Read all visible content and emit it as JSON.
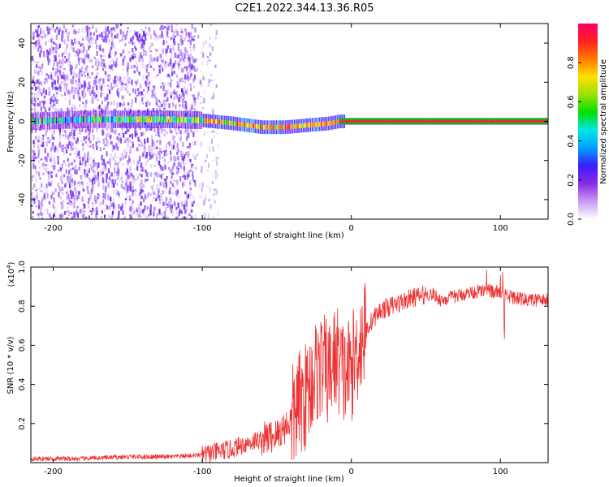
{
  "page_title": "C2E1.2022.344.13.36.R05",
  "chart_data": [
    {
      "type": "heatmap",
      "title": "C2E1.2022.344.13.36.R05",
      "xlabel": "Height of straight line (km)",
      "ylabel": "Frequency (Hz)",
      "xlim": [
        -215,
        132
      ],
      "ylim": [
        -50,
        50
      ],
      "xticks": [
        -200,
        -100,
        0,
        100
      ],
      "yticks": [
        -40,
        -20,
        0,
        20,
        40
      ],
      "ridge": {
        "x": [
          -215,
          -180,
          -150,
          -120,
          -100,
          -80,
          -60,
          -45,
          -30,
          -15,
          -8,
          0,
          50,
          100,
          132
        ],
        "y": [
          0,
          1,
          1,
          1,
          0.5,
          -1,
          -3,
          -3,
          -2,
          -1,
          0,
          0,
          0,
          0,
          0
        ]
      },
      "noise_regions": [
        {
          "x_from": -215,
          "x_to": -105,
          "density": "high"
        },
        {
          "x_from": -105,
          "x_to": -90,
          "density": "low"
        }
      ],
      "colorbar": {
        "label": "Normalized spectral amplitude",
        "range": [
          0,
          1
        ],
        "ticks": [
          "0.0",
          "0.2",
          "0.4",
          "0.6",
          "0.8"
        ],
        "colors": [
          "#ffffff",
          "#c899f5",
          "#8a2be2",
          "#3a1cff",
          "#00a0ff",
          "#00e6e6",
          "#00e000",
          "#9be000",
          "#ffe000",
          "#ff7a00",
          "#ff2020",
          "#ff0066"
        ]
      }
    },
    {
      "type": "line",
      "xlabel": "Height of straight line (km)",
      "ylabel": "SNR (10 * v/v)",
      "multiplier": "(x10^4)",
      "multiplier_base": "(x10",
      "multiplier_exp": "4",
      "multiplier_close": ")",
      "xlim": [
        -215,
        132
      ],
      "ylim": [
        0,
        1.0
      ],
      "xticks": [
        -200,
        -100,
        0,
        100
      ],
      "yticks": [
        "0.2",
        "0.4",
        "0.6",
        "0.8",
        "1.0"
      ],
      "series": [
        {
          "name": "SNR",
          "color": "#ee3333",
          "x": [
            -215,
            -180,
            -150,
            -120,
            -100,
            -80,
            -70,
            -60,
            -50,
            -40,
            -35,
            -30,
            -25,
            -20,
            -15,
            -10,
            -5,
            0,
            5,
            10,
            15,
            20,
            30,
            40,
            50,
            55,
            60,
            70,
            80,
            90,
            100,
            110,
            120,
            132
          ],
          "y": [
            0.02,
            0.02,
            0.03,
            0.03,
            0.04,
            0.07,
            0.1,
            0.12,
            0.14,
            0.22,
            0.3,
            0.35,
            0.45,
            0.5,
            0.45,
            0.55,
            0.45,
            0.48,
            0.6,
            0.68,
            0.74,
            0.78,
            0.81,
            0.84,
            0.86,
            0.86,
            0.83,
            0.85,
            0.87,
            0.88,
            0.87,
            0.84,
            0.83,
            0.83
          ]
        }
      ]
    }
  ]
}
